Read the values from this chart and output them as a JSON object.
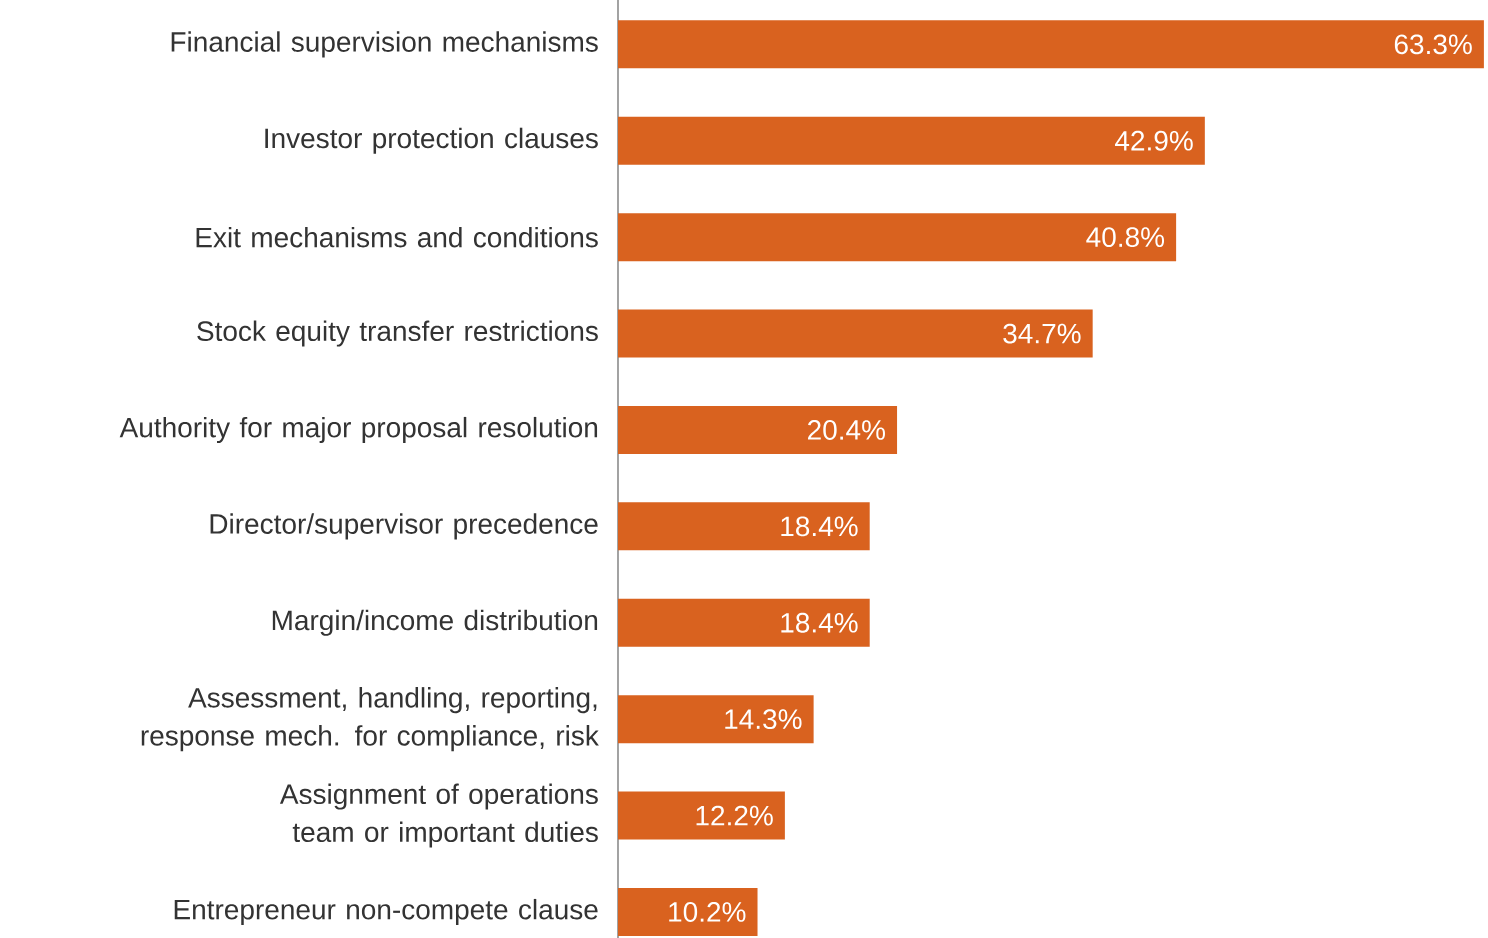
{
  "chart_data": {
    "type": "bar",
    "orientation": "horizontal",
    "categories": [
      "Financial supervision mechanisms",
      "Investor protection clauses",
      "Exit mechanisms and conditions",
      "Stock equity transfer restrictions",
      "Authority for major proposal resolution",
      "Director/supervisor precedence",
      "Margin/income distribution",
      "Assessment, handling, reporting, response mech. for compliance, risk",
      "Assignment of operations team or important duties",
      "Entrepreneur non-compete clause"
    ],
    "values": [
      63.3,
      42.9,
      40.8,
      34.7,
      20.4,
      18.4,
      18.4,
      14.3,
      12.2,
      10.2
    ],
    "value_labels": [
      "63.3%",
      "42.9%",
      "40.8%",
      "34.7%",
      "20.4%",
      "18.4%",
      "18.4%",
      "14.3%",
      "12.2%",
      "10.2%"
    ],
    "color": "#d9621f",
    "xlim": [
      0,
      63.6
    ],
    "tick_labels": "y"
  }
}
